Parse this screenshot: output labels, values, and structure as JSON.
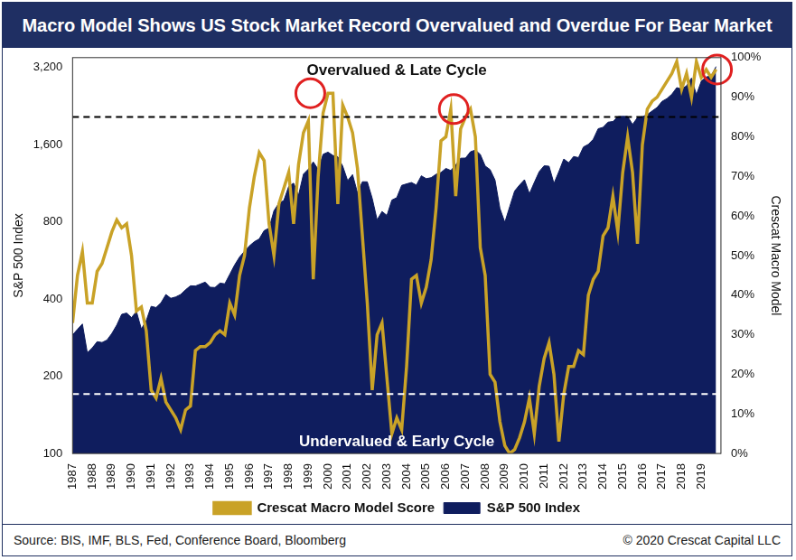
{
  "chart_data": {
    "type": "line",
    "title": "Macro Model Shows US Stock Market Record Overvalued and Overdue For Bear Market",
    "y_label": "S&P 500 Index",
    "y2_label": "Crescat Macro Model",
    "source": "Source: BIS, IMF, BLS, Fed, Conference Board, Bloomberg",
    "copyright": "© 2020 Crescat Capital LLC",
    "annotations": [
      {
        "text": "Overvalued & Late Cycle",
        "position": "top"
      },
      {
        "text": "Undervalued & Early Cycle",
        "position": "bottom"
      }
    ],
    "hlines": [
      {
        "value": 85,
        "axis": "y2",
        "color": "#000000",
        "line_style": "dashed"
      },
      {
        "value": 15,
        "axis": "y2",
        "color": "#ffffff",
        "line_style": "dashed"
      }
    ],
    "highlights": [
      {
        "x": 1999.1,
        "y": 91,
        "axis": "y2",
        "color": "#e02020"
      },
      {
        "x": 2006.4,
        "y": 87,
        "axis": "y2",
        "color": "#e02020"
      },
      {
        "x": 2019.8,
        "y": 97,
        "axis": "y2",
        "color": "#e02020"
      }
    ],
    "x": [
      1987,
      1987.25,
      1987.5,
      1987.75,
      1988,
      1988.25,
      1988.5,
      1988.75,
      1989,
      1989.25,
      1989.5,
      1989.75,
      1990,
      1990.25,
      1990.5,
      1990.75,
      1991,
      1991.25,
      1991.5,
      1991.75,
      1992,
      1992.25,
      1992.5,
      1992.75,
      1993,
      1993.25,
      1993.5,
      1993.75,
      1994,
      1994.25,
      1994.5,
      1994.75,
      1995,
      1995.25,
      1995.5,
      1995.75,
      1996,
      1996.25,
      1996.5,
      1996.75,
      1997,
      1997.25,
      1997.5,
      1997.75,
      1998,
      1998.25,
      1998.5,
      1998.75,
      1999,
      1999.25,
      1999.5,
      1999.75,
      2000,
      2000.25,
      2000.5,
      2000.75,
      2001,
      2001.25,
      2001.5,
      2001.75,
      2002,
      2002.25,
      2002.5,
      2002.75,
      2003,
      2003.25,
      2003.5,
      2003.75,
      2004,
      2004.25,
      2004.5,
      2004.75,
      2005,
      2005.25,
      2005.5,
      2005.75,
      2006,
      2006.25,
      2006.5,
      2006.75,
      2007,
      2007.25,
      2007.5,
      2007.75,
      2008,
      2008.25,
      2008.5,
      2008.75,
      2009,
      2009.25,
      2009.5,
      2009.75,
      2010,
      2010.25,
      2010.5,
      2010.75,
      2011,
      2011.25,
      2011.5,
      2011.75,
      2012,
      2012.25,
      2012.5,
      2012.75,
      2013,
      2013.25,
      2013.5,
      2013.75,
      2014,
      2014.25,
      2014.5,
      2014.75,
      2015,
      2015.25,
      2015.5,
      2015.75,
      2016,
      2016.25,
      2016.5,
      2016.75,
      2017,
      2017.25,
      2017.5,
      2017.75,
      2018,
      2018.25,
      2018.5,
      2018.75,
      2019,
      2019.25,
      2019.5,
      2019.75
    ],
    "series": [
      {
        "name": "S&P 500 Index",
        "type": "area",
        "color": "#0f1d5e",
        "axis": "y",
        "values": [
          290,
          305,
          320,
          247,
          258,
          273,
          271,
          277,
          294,
          317,
          349,
          353,
          339,
          358,
          306,
          330,
          375,
          371,
          387,
          417,
          403,
          408,
          417,
          435,
          451,
          450,
          458,
          466,
          445,
          444,
          462,
          459,
          500,
          544,
          584,
          615,
          645,
          670,
          687,
          740,
          757,
          885,
          947,
          970,
          1101,
          1133,
          1017,
          1229,
          1286,
          1372,
          1282,
          1469,
          1498,
          1454,
          1436,
          1320,
          1160,
          1224,
          1040,
          1148,
          1147,
          989,
          815,
          879,
          848,
          974,
          995,
          1111,
          1126,
          1140,
          1114,
          1211,
          1180,
          1191,
          1228,
          1248,
          1294,
          1270,
          1335,
          1418,
          1420,
          1503,
          1526,
          1468,
          1322,
          1280,
          1166,
          903,
          797,
          919,
          1057,
          1115,
          1169,
          1030,
          1141,
          1257,
          1325,
          1320,
          1131,
          1257,
          1408,
          1362,
          1440,
          1426,
          1569,
          1606,
          1681,
          1848,
          1872,
          1960,
          1972,
          2058,
          2067,
          2063,
          1920,
          2043,
          2059,
          2098,
          2168,
          2238,
          2362,
          2423,
          2519,
          2673,
          2640,
          2718,
          2913,
          2506,
          2834,
          2941,
          2976,
          3230
        ]
      },
      {
        "name": "Crescat Macro Model Score",
        "type": "line",
        "color": "#c9a227",
        "axis": "y2",
        "values": [
          33,
          45,
          51,
          38,
          38,
          46,
          48,
          52,
          56,
          59,
          57,
          58,
          50,
          36,
          37,
          31,
          16,
          14,
          19,
          13,
          11,
          9,
          6,
          11,
          12,
          26,
          27,
          27,
          28,
          30,
          31,
          30,
          38,
          35,
          45,
          50,
          62,
          70,
          76,
          74,
          58,
          50,
          63,
          67,
          71,
          58,
          73,
          81,
          84,
          44,
          70,
          86,
          91,
          91,
          63,
          88,
          85,
          81,
          72,
          55,
          38,
          16,
          30,
          33,
          19,
          5,
          9,
          6,
          22,
          44,
          45,
          38,
          42,
          49,
          62,
          79,
          80,
          87,
          65,
          82,
          85,
          87,
          80,
          52,
          45,
          20,
          18,
          8,
          2,
          0,
          1,
          4,
          8,
          14,
          5,
          17,
          24,
          28,
          20,
          3,
          15,
          22,
          22,
          26,
          25,
          40,
          44,
          46,
          55,
          57,
          65,
          56,
          71,
          80,
          71,
          53,
          78,
          87,
          89,
          90,
          92,
          94,
          96,
          99,
          92,
          96,
          90,
          99,
          95,
          97,
          95,
          97
        ]
      }
    ],
    "xlim": [
      1987,
      2020
    ],
    "xticks": [
      1987,
      1988,
      1989,
      1990,
      1991,
      1992,
      1993,
      1994,
      1995,
      1996,
      1997,
      1998,
      1999,
      2000,
      2001,
      2002,
      2003,
      2004,
      2005,
      2006,
      2007,
      2008,
      2009,
      2010,
      2011,
      2012,
      2013,
      2014,
      2015,
      2016,
      2017,
      2018,
      2019
    ],
    "ylim": [
      100,
      3500
    ],
    "yticks": [
      100,
      200,
      400,
      800,
      {
        "value": 1600,
        "label": "1,600"
      },
      {
        "value": 3200,
        "label": "3,200"
      }
    ],
    "log": "y",
    "y2lim": [
      0,
      100
    ],
    "y2ticks": [
      {
        "value": 0,
        "label": "0%"
      },
      {
        "value": 10,
        "label": "10%"
      },
      {
        "value": 20,
        "label": "20%"
      },
      {
        "value": 30,
        "label": "30%"
      },
      {
        "value": 40,
        "label": "40%"
      },
      {
        "value": 50,
        "label": "50%"
      },
      {
        "value": 60,
        "label": "60%"
      },
      {
        "value": 70,
        "label": "70%"
      },
      {
        "value": 80,
        "label": "80%"
      },
      {
        "value": 90,
        "label": "90%"
      },
      {
        "value": 100,
        "label": "100%"
      }
    ],
    "grid": false,
    "legend": "bottom"
  }
}
